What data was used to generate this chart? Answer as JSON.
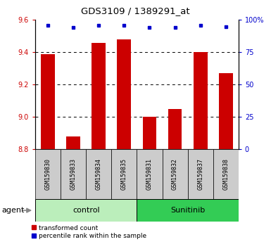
{
  "title": "GDS3109 / 1389291_at",
  "samples": [
    "GSM159830",
    "GSM159833",
    "GSM159834",
    "GSM159835",
    "GSM159831",
    "GSM159832",
    "GSM159837",
    "GSM159838"
  ],
  "red_values": [
    9.39,
    8.88,
    9.46,
    9.48,
    9.0,
    9.05,
    9.4,
    9.27
  ],
  "blue_values": [
    96,
    94,
    96,
    96,
    94,
    94,
    96,
    95
  ],
  "ylim_left": [
    8.8,
    9.6
  ],
  "ylim_right": [
    0,
    100
  ],
  "yticks_left": [
    8.8,
    9.0,
    9.2,
    9.4,
    9.6
  ],
  "yticks_right": [
    0,
    25,
    50,
    75,
    100
  ],
  "groups": [
    {
      "label": "control",
      "start": 0,
      "end": 4,
      "color": "#bbeebb"
    },
    {
      "label": "Sunitinib",
      "start": 4,
      "end": 8,
      "color": "#33cc55"
    }
  ],
  "bar_color": "#cc0000",
  "dot_color": "#0000cc",
  "label_bg": "#cccccc",
  "agent_label": "agent",
  "legend_red": "transformed count",
  "legend_blue": "percentile rank within the sample"
}
